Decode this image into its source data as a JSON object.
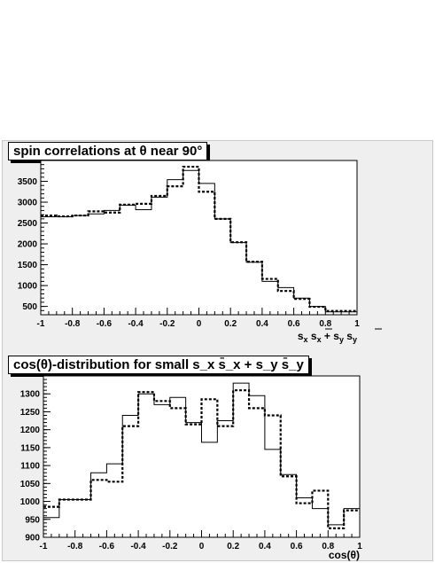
{
  "chart_data": [
    {
      "type": "histogram",
      "title": "spin correlations at θ near 90°",
      "xlabel": "s_x s̄_x + s_y s̄_y",
      "ylabel": "",
      "xlim": [
        -1,
        1
      ],
      "ylim": [
        300,
        4000
      ],
      "bin_edges": [
        -1.0,
        -0.9,
        -0.8,
        -0.7,
        -0.6,
        -0.5,
        -0.4,
        -0.3,
        -0.2,
        -0.1,
        0.0,
        0.1,
        0.2,
        0.3,
        0.4,
        0.5,
        0.6,
        0.7,
        0.8,
        0.9,
        1.0
      ],
      "xticks": [
        -1,
        -0.8,
        -0.6,
        -0.4,
        -0.2,
        0,
        0.2,
        0.4,
        0.6,
        0.8,
        1
      ],
      "yticks": [
        500,
        1000,
        1500,
        2000,
        2500,
        3000,
        3500
      ],
      "series": [
        {
          "style": "solid",
          "values": [
            2650,
            2650,
            2680,
            2720,
            2800,
            2930,
            2820,
            3120,
            3540,
            3760,
            3450,
            2600,
            2030,
            1560,
            1100,
            950,
            700,
            500,
            370,
            370
          ]
        },
        {
          "style": "dashed",
          "values": [
            2680,
            2660,
            2680,
            2780,
            2750,
            2940,
            2960,
            3150,
            3380,
            3850,
            3250,
            2600,
            2040,
            1570,
            1160,
            870,
            680,
            490,
            390,
            390
          ]
        }
      ]
    },
    {
      "type": "histogram",
      "title": "cos(θ)-distribution for small s_x s̄_x + s_y s̄_y",
      "xlabel": "cos(θ)",
      "ylabel": "",
      "xlim": [
        -1,
        1
      ],
      "ylim": [
        900,
        1350
      ],
      "bin_edges": [
        -1.0,
        -0.9,
        -0.8,
        -0.7,
        -0.6,
        -0.5,
        -0.4,
        -0.3,
        -0.2,
        -0.1,
        0.0,
        0.1,
        0.2,
        0.3,
        0.4,
        0.5,
        0.6,
        0.7,
        0.8,
        0.9,
        1.0
      ],
      "xticks": [
        -1,
        -0.8,
        -0.6,
        -0.4,
        -0.2,
        0,
        0.2,
        0.4,
        0.6,
        0.8,
        1
      ],
      "yticks": [
        900,
        950,
        1000,
        1050,
        1100,
        1150,
        1200,
        1250,
        1300
      ],
      "series": [
        {
          "style": "solid",
          "values": [
            955,
            1005,
            1005,
            1080,
            1105,
            1240,
            1300,
            1270,
            1290,
            1220,
            1165,
            1225,
            1330,
            1295,
            1145,
            1075,
            1010,
            980,
            935,
            980
          ]
        },
        {
          "style": "dashed",
          "values": [
            985,
            1005,
            1005,
            1060,
            1055,
            1210,
            1305,
            1280,
            1260,
            1215,
            1285,
            1210,
            1310,
            1260,
            1240,
            1070,
            995,
            1030,
            925,
            975
          ]
        }
      ]
    }
  ]
}
